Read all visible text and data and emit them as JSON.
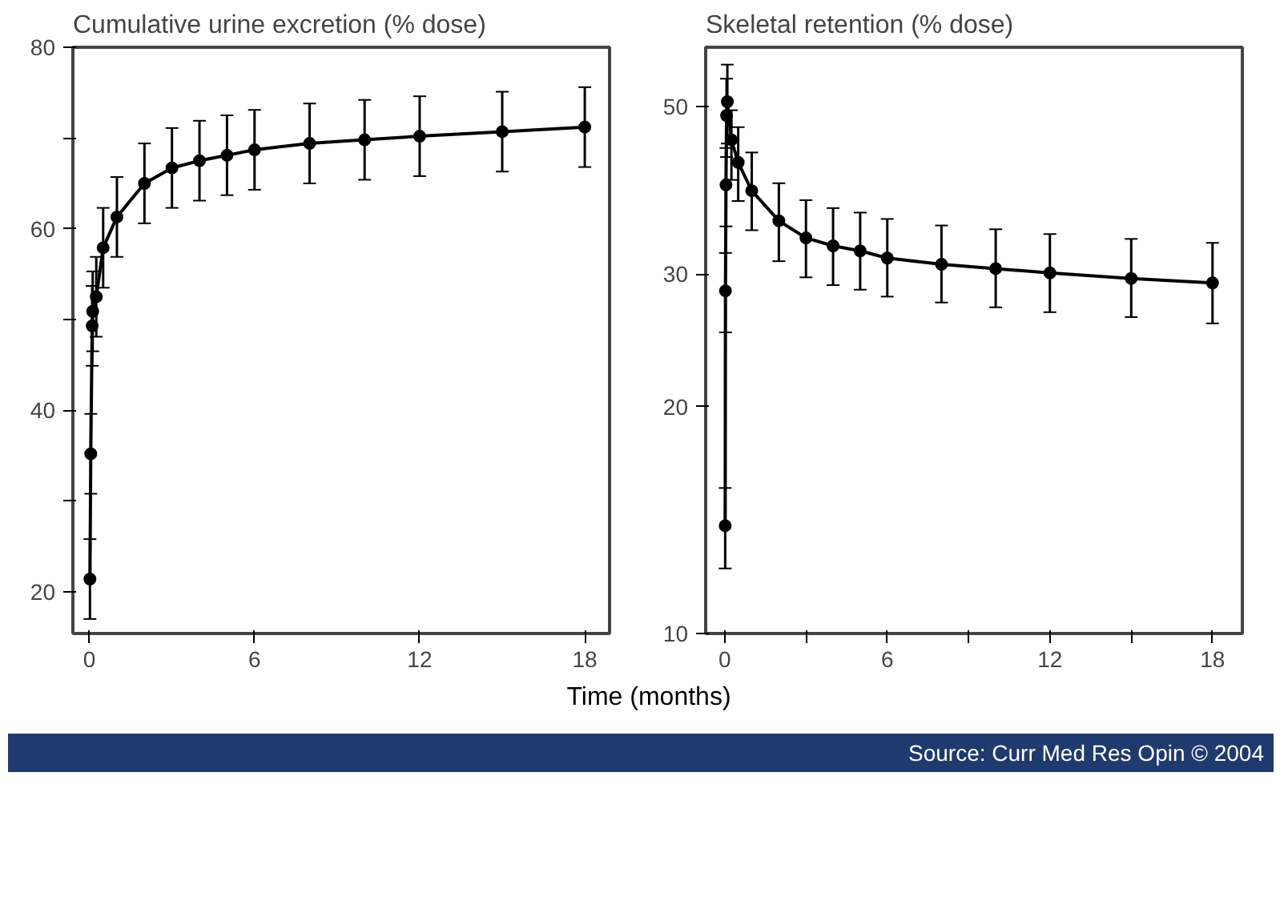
{
  "chart_data": [
    {
      "type": "line",
      "title": "Cumulative urine excretion (% dose)",
      "x": [
        0.02,
        0.05,
        0.1,
        0.12,
        0.25,
        0.5,
        1,
        2,
        3,
        4,
        5,
        6,
        8,
        10,
        12,
        15,
        18
      ],
      "xlim": [
        -0.6,
        18.9
      ],
      "xticks": [
        0,
        6,
        12,
        18
      ],
      "ylim": [
        15.4,
        80
      ],
      "yticks": [
        20,
        {
          "value": 30,
          "label": null
        },
        40,
        {
          "value": 50,
          "label": null
        },
        60,
        {
          "value": 70,
          "label": null
        },
        80
      ],
      "series": [
        {
          "color": "#000000",
          "values": [
            21.4,
            35.2,
            49.3,
            50.9,
            52.5,
            57.9,
            61.3,
            65.0,
            66.7,
            67.5,
            68.1,
            68.7,
            69.4,
            69.8,
            70.2,
            70.7,
            71.2
          ],
          "errors": [
            4.4,
            4.4,
            4.4,
            4.4,
            4.4,
            4.4,
            4.4,
            4.4,
            4.4,
            4.4,
            4.4,
            4.4,
            4.4,
            4.4,
            4.4,
            4.4,
            4.4
          ]
        }
      ],
      "marker": "circle",
      "line_style": "solid",
      "grid": false
    },
    {
      "type": "line",
      "title": "Skeletal retention (% dose)",
      "xlabel": "Time (months)",
      "annotations": [
        "Source: Curr Med Res Opin © 2004"
      ],
      "log": "y",
      "x": [
        0.02,
        0.03,
        0.05,
        0.07,
        0.1,
        0.25,
        0.5,
        1,
        2,
        3,
        4,
        5,
        6,
        8,
        10,
        12,
        15,
        18
      ],
      "xlim": [
        -0.7,
        19.1
      ],
      "xticks": [
        0,
        {
          "value": 3,
          "label": null
        },
        6,
        {
          "value": 9,
          "label": null
        },
        12,
        {
          "value": 15,
          "label": null
        },
        18
      ],
      "ylim": [
        10,
        60
      ],
      "yticks": [
        10,
        20,
        30,
        50
      ],
      "series": [
        {
          "color": "#000000",
          "values": [
            13.9,
            28.5,
            39.4,
            48.7,
            50.8,
            45.2,
            42.2,
            38.7,
            35.3,
            33.5,
            32.7,
            32.2,
            31.5,
            30.9,
            30.5,
            30.1,
            29.6,
            29.2
          ],
          "errors": [
            [
              12.2,
              15.6
            ],
            [
              25.1,
              32.0
            ],
            [
              34.7,
              44.1
            ],
            [
              42.9,
              54.5
            ],
            [
              44.7,
              56.9
            ],
            [
              40.0,
              49.5
            ],
            [
              37.5,
              47.0
            ],
            [
              34.3,
              43.5
            ],
            [
              31.2,
              39.6
            ],
            [
              29.7,
              37.6
            ],
            [
              29.0,
              36.7
            ],
            [
              28.6,
              36.2
            ],
            [
              28.0,
              35.5
            ],
            [
              27.5,
              34.8
            ],
            [
              27.1,
              34.4
            ],
            [
              26.7,
              33.9
            ],
            [
              26.3,
              33.4
            ],
            [
              25.8,
              33.0
            ]
          ]
        }
      ],
      "marker": "circle",
      "line_style": "solid",
      "grid": false
    }
  ]
}
